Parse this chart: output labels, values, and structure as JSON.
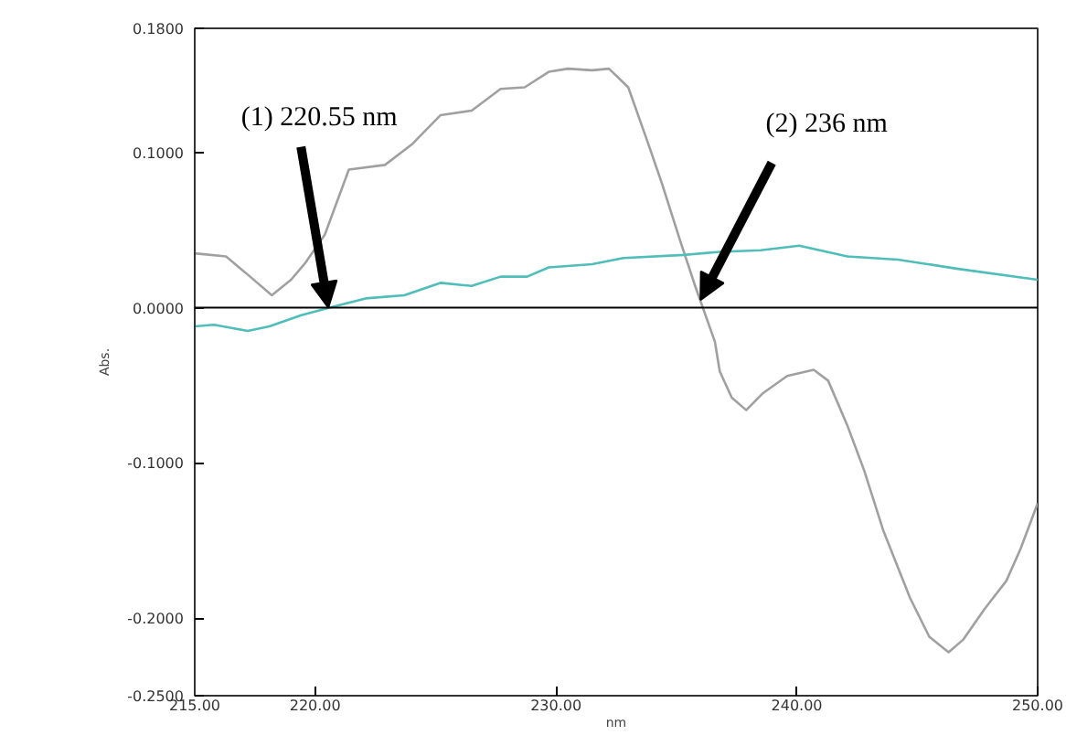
{
  "chart_data": {
    "type": "line",
    "xlabel": "nm",
    "ylabel": "Abs.",
    "xlim": [
      215,
      250
    ],
    "ylim": [
      -0.25,
      0.18
    ],
    "xticks": [
      {
        "value": 215,
        "label": "215.00"
      },
      {
        "value": 220,
        "label": "220.00"
      },
      {
        "value": 230,
        "label": "230.00"
      },
      {
        "value": 240,
        "label": "240.00"
      },
      {
        "value": 250,
        "label": "250.00"
      }
    ],
    "yticks": [
      {
        "value": 0.18,
        "label": "0.1800"
      },
      {
        "value": 0.1,
        "label": "0.1000"
      },
      {
        "value": 0,
        "label": "0.0000"
      },
      {
        "value": -0.1,
        "label": "-0.1000"
      },
      {
        "value": -0.2,
        "label": "-0.2000"
      },
      {
        "value": -0.25,
        "label": "-0.2500"
      }
    ],
    "grid": false,
    "marker": "none",
    "line_style": "solid",
    "ref_lines": [
      {
        "axis": "y",
        "value": 0,
        "color": "#000000"
      }
    ],
    "annotations": [
      {
        "text": "(1) 220.55 nm",
        "x": 220.55,
        "y": 0
      },
      {
        "text": "(2) 236 nm",
        "x": 236,
        "y": 0.005
      }
    ],
    "series": [
      {
        "color": "#a0a0a0",
        "x": [
          215,
          216.3,
          217.3,
          218.2,
          219.0,
          219.6,
          220.4,
          221.4,
          222.9,
          224.0,
          225.2,
          226.5,
          227.7,
          228.7,
          229.7,
          230.5,
          231.5,
          232.2,
          233.0,
          233.8,
          234.4,
          235.2,
          235.8,
          236.6,
          236.8,
          237.3,
          237.9,
          238.6,
          239.6,
          240.7,
          241.3,
          242.1,
          242.8,
          243.6,
          244.7,
          245.5,
          246.3,
          246.9,
          247.8,
          248.7,
          249.3,
          250
        ],
        "values": [
          0.035,
          0.033,
          0.02,
          0.008,
          0.018,
          0.029,
          0.047,
          0.089,
          0.092,
          0.105,
          0.124,
          0.127,
          0.141,
          0.142,
          0.152,
          0.154,
          0.153,
          0.154,
          0.142,
          0.107,
          0.08,
          0.041,
          0.013,
          -0.022,
          -0.041,
          -0.058,
          -0.066,
          -0.055,
          -0.044,
          -0.04,
          -0.047,
          -0.076,
          -0.105,
          -0.144,
          -0.187,
          -0.212,
          -0.222,
          -0.214,
          -0.194,
          -0.176,
          -0.155,
          -0.126
        ]
      },
      {
        "color": "#4fbdb8",
        "x": [
          215,
          215.8,
          217.2,
          218.1,
          219.4,
          220.6,
          222.1,
          223.7,
          225.2,
          226.5,
          227.7,
          228.8,
          229.7,
          231.5,
          232.8,
          235.3,
          236.8,
          238.5,
          240.1,
          242.1,
          244.2,
          246.7,
          250
        ],
        "values": [
          -0.012,
          -0.011,
          -0.015,
          -0.012,
          -0.005,
          0.0,
          0.006,
          0.008,
          0.016,
          0.014,
          0.02,
          0.02,
          0.026,
          0.028,
          0.032,
          0.034,
          0.036,
          0.037,
          0.04,
          0.033,
          0.031,
          0.025,
          0.018
        ]
      }
    ]
  }
}
